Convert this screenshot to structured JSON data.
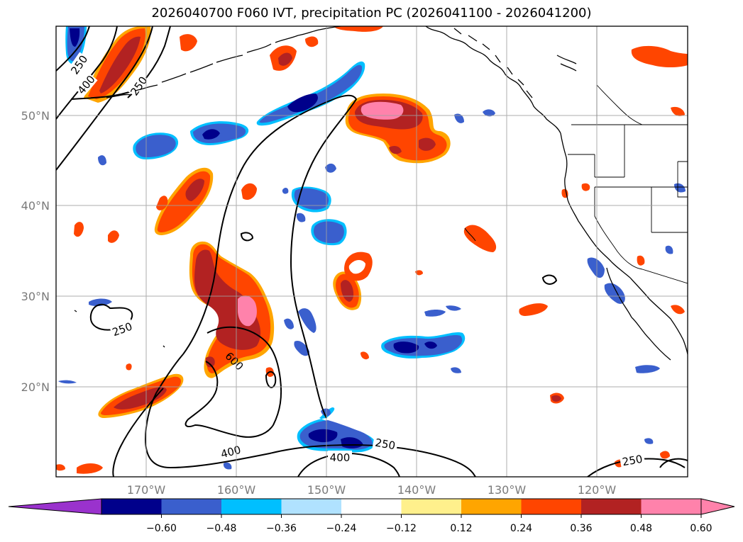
{
  "title": "2026040700 F060 IVT, precipitation PC (2026041100 - 2026041200)",
  "map": {
    "lat_labels": [
      "50°N",
      "40°N",
      "30°N",
      "20°N"
    ],
    "lon_labels": [
      "170°W",
      "160°W",
      "150°W",
      "140°W",
      "130°W",
      "120°W"
    ],
    "contour_labels": [
      "250",
      "400",
      "250",
      "250",
      "600",
      "400",
      "400",
      "250",
      "250"
    ],
    "contour_levels": [
      250,
      400,
      600
    ],
    "colors": {
      "neg_extend": "#9a32cd",
      "neg_060": "#00008b",
      "neg_048": "#3a5fcd",
      "neg_036": "#00bfff",
      "neg_024": "#b0e2ff",
      "neutral": "#ffffff",
      "pos_012": "#fff08c",
      "pos_024": "#ffa500",
      "pos_036": "#ff4500",
      "pos_048": "#b22222",
      "pos_060": "#ff82ab"
    }
  },
  "colorbar": {
    "ticks": [
      "−0.60",
      "−0.48",
      "−0.36",
      "−0.24",
      "−0.12",
      "0.12",
      "0.24",
      "0.36",
      "0.48",
      "0.60"
    ],
    "colors": [
      "#00008b",
      "#3a5fcd",
      "#00bfff",
      "#b0e2ff",
      "#ffffff",
      "#fff08c",
      "#ffa500",
      "#ff4500",
      "#b22222",
      "#ff82ab"
    ],
    "min_extend_color": "#9a32cd",
    "max_extend_color": "#ff82ab"
  }
}
